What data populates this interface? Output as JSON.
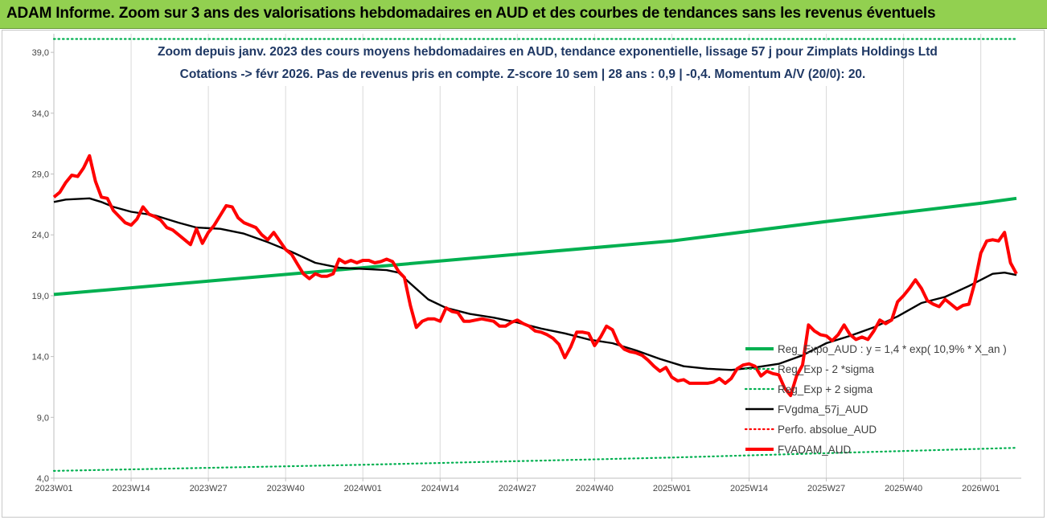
{
  "banner": {
    "title": "ADAM Informe. Zoom sur 3 ans des valorisations hebdomadaires en AUD et des courbes de tendances sans les revenus éventuels"
  },
  "colors": {
    "banner_bg": "#92d050",
    "title_text": "#1f3864",
    "regression": "#00b050",
    "sigma": "#00b050",
    "fvgdma": "#000000",
    "perfo": "#ff0000",
    "fvadam": "#ff0000",
    "grid": "#d9d9d9"
  },
  "chart_data": {
    "type": "line",
    "title": "Zoom depuis janv. 2023 des cours moyens hebdomadaires en AUD, tendance exponentielle, lissage 57 j pour Zimplats Holdings Ltd",
    "subtitle": "Cotations -> févr 2026. Pas de revenus pris en compte. Z-score 10 sem | 28 ans : 0,9 | -0,4. Momentum A/V (20/0): 20.",
    "xlabel": "",
    "ylabel": "",
    "ylim": [
      4.0,
      40.0
    ],
    "yticks": [
      "4,0",
      "9,0",
      "14,0",
      "19,0",
      "24,0",
      "29,0",
      "34,0",
      "39,0"
    ],
    "ytick_values": [
      4,
      9,
      14,
      19,
      24,
      29,
      34,
      39
    ],
    "xticks": [
      "2023W01",
      "2023W14",
      "2023W27",
      "2023W40",
      "2024W01",
      "2024W14",
      "2024W27",
      "2024W40",
      "2025W01",
      "2025W14",
      "2025W27",
      "2025W40",
      "2026W01"
    ],
    "xtick_weeks": [
      0,
      13,
      26,
      39,
      52,
      65,
      78,
      91,
      104,
      117,
      130,
      143,
      156
    ],
    "x_weeks_total": 162,
    "grid": "vertical",
    "legend_position": "right",
    "series": [
      {
        "name": "Reg_Expo_AUD : y = 1,4 * exp( 10,9% *  X_an )",
        "style": "solid-thick",
        "color": "#00b050",
        "points": [
          [
            0,
            19.1
          ],
          [
            26,
            20.2
          ],
          [
            52,
            21.3
          ],
          [
            78,
            22.4
          ],
          [
            104,
            23.5
          ],
          [
            130,
            25.1
          ],
          [
            156,
            26.6
          ],
          [
            162,
            27.0
          ]
        ]
      },
      {
        "name": "Reg_Exp - 2 *sigma",
        "style": "dotted",
        "color": "#00b050",
        "points": [
          [
            0,
            4.6
          ],
          [
            52,
            5.1
          ],
          [
            104,
            5.7
          ],
          [
            162,
            6.5
          ]
        ]
      },
      {
        "name": "Reg_Exp + 2 sigma",
        "style": "dotted",
        "color": "#00b050",
        "points": [
          [
            0,
            40.1
          ],
          [
            162,
            40.1
          ]
        ]
      },
      {
        "name": "FVgdma_57j_AUD",
        "style": "solid",
        "color": "#000000",
        "points": [
          [
            0,
            26.7
          ],
          [
            2,
            26.9
          ],
          [
            6,
            27.0
          ],
          [
            8,
            26.7
          ],
          [
            10,
            26.3
          ],
          [
            13,
            25.9
          ],
          [
            17,
            25.6
          ],
          [
            21,
            25.0
          ],
          [
            24,
            24.6
          ],
          [
            28,
            24.5
          ],
          [
            32,
            24.1
          ],
          [
            36,
            23.4
          ],
          [
            40,
            22.6
          ],
          [
            44,
            21.7
          ],
          [
            48,
            21.3
          ],
          [
            52,
            21.2
          ],
          [
            56,
            21.1
          ],
          [
            58,
            20.9
          ],
          [
            60,
            20.0
          ],
          [
            63,
            18.7
          ],
          [
            66,
            18.0
          ],
          [
            70,
            17.5
          ],
          [
            74,
            17.2
          ],
          [
            78,
            16.8
          ],
          [
            82,
            16.3
          ],
          [
            86,
            15.9
          ],
          [
            90,
            15.4
          ],
          [
            94,
            15.1
          ],
          [
            98,
            14.5
          ],
          [
            102,
            13.8
          ],
          [
            106,
            13.2
          ],
          [
            110,
            13.0
          ],
          [
            114,
            12.9
          ],
          [
            118,
            13.1
          ],
          [
            122,
            13.4
          ],
          [
            126,
            14.1
          ],
          [
            130,
            15.1
          ],
          [
            134,
            15.7
          ],
          [
            138,
            16.4
          ],
          [
            142,
            17.3
          ],
          [
            146,
            18.4
          ],
          [
            150,
            18.9
          ],
          [
            154,
            19.8
          ],
          [
            158,
            20.8
          ],
          [
            160,
            20.9
          ],
          [
            162,
            20.7
          ]
        ]
      },
      {
        "name": "Perfo. absolue_AUD",
        "style": "dotted",
        "color": "#ff0000",
        "points": []
      },
      {
        "name": "FVADAM_AUD",
        "style": "solid-thick",
        "color": "#ff0000",
        "points": [
          [
            0,
            27.1
          ],
          [
            1,
            27.5
          ],
          [
            2,
            28.3
          ],
          [
            3,
            28.9
          ],
          [
            4,
            28.8
          ],
          [
            5,
            29.5
          ],
          [
            6,
            30.5
          ],
          [
            7,
            28.4
          ],
          [
            8,
            27.1
          ],
          [
            9,
            27.0
          ],
          [
            10,
            26.0
          ],
          [
            11,
            25.5
          ],
          [
            12,
            25.0
          ],
          [
            13,
            24.8
          ],
          [
            14,
            25.3
          ],
          [
            15,
            26.3
          ],
          [
            16,
            25.7
          ],
          [
            17,
            25.5
          ],
          [
            18,
            25.2
          ],
          [
            19,
            24.6
          ],
          [
            20,
            24.4
          ],
          [
            21,
            24.0
          ],
          [
            22,
            23.6
          ],
          [
            23,
            23.2
          ],
          [
            24,
            24.5
          ],
          [
            25,
            23.3
          ],
          [
            26,
            24.2
          ],
          [
            27,
            24.8
          ],
          [
            28,
            25.6
          ],
          [
            29,
            26.4
          ],
          [
            30,
            26.3
          ],
          [
            31,
            25.4
          ],
          [
            32,
            25.0
          ],
          [
            33,
            24.8
          ],
          [
            34,
            24.6
          ],
          [
            35,
            24.0
          ],
          [
            36,
            23.6
          ],
          [
            37,
            24.2
          ],
          [
            38,
            23.5
          ],
          [
            39,
            22.8
          ],
          [
            40,
            22.4
          ],
          [
            41,
            21.6
          ],
          [
            42,
            20.8
          ],
          [
            43,
            20.4
          ],
          [
            44,
            20.8
          ],
          [
            45,
            20.6
          ],
          [
            46,
            20.6
          ],
          [
            47,
            20.8
          ],
          [
            48,
            22.0
          ],
          [
            49,
            21.7
          ],
          [
            50,
            21.9
          ],
          [
            51,
            21.7
          ],
          [
            52,
            21.9
          ],
          [
            53,
            21.9
          ],
          [
            54,
            21.7
          ],
          [
            55,
            21.8
          ],
          [
            56,
            22.0
          ],
          [
            57,
            21.8
          ],
          [
            58,
            21.0
          ],
          [
            59,
            20.5
          ],
          [
            60,
            18.2
          ],
          [
            61,
            16.4
          ],
          [
            62,
            16.9
          ],
          [
            63,
            17.1
          ],
          [
            64,
            17.1
          ],
          [
            65,
            16.9
          ],
          [
            66,
            18.0
          ],
          [
            67,
            17.7
          ],
          [
            68,
            17.6
          ],
          [
            69,
            16.9
          ],
          [
            70,
            16.9
          ],
          [
            71,
            17.0
          ],
          [
            72,
            17.1
          ],
          [
            73,
            17.0
          ],
          [
            74,
            16.9
          ],
          [
            75,
            16.5
          ],
          [
            76,
            16.5
          ],
          [
            77,
            16.8
          ],
          [
            78,
            17.0
          ],
          [
            79,
            16.7
          ],
          [
            80,
            16.5
          ],
          [
            81,
            16.1
          ],
          [
            82,
            16.0
          ],
          [
            83,
            15.8
          ],
          [
            84,
            15.5
          ],
          [
            85,
            15.0
          ],
          [
            86,
            13.9
          ],
          [
            87,
            14.8
          ],
          [
            88,
            16.0
          ],
          [
            89,
            16.0
          ],
          [
            90,
            15.9
          ],
          [
            91,
            14.9
          ],
          [
            92,
            15.6
          ],
          [
            93,
            16.5
          ],
          [
            94,
            16.2
          ],
          [
            95,
            15.1
          ],
          [
            96,
            14.6
          ],
          [
            97,
            14.4
          ],
          [
            98,
            14.3
          ],
          [
            99,
            14.1
          ],
          [
            100,
            13.7
          ],
          [
            101,
            13.2
          ],
          [
            102,
            12.8
          ],
          [
            103,
            13.1
          ],
          [
            104,
            12.3
          ],
          [
            105,
            12.0
          ],
          [
            106,
            12.1
          ],
          [
            107,
            11.8
          ],
          [
            108,
            11.8
          ],
          [
            109,
            11.8
          ],
          [
            110,
            11.8
          ],
          [
            111,
            11.9
          ],
          [
            112,
            12.2
          ],
          [
            113,
            11.8
          ],
          [
            114,
            12.2
          ],
          [
            115,
            13.0
          ],
          [
            116,
            13.3
          ],
          [
            117,
            13.4
          ],
          [
            118,
            13.2
          ],
          [
            119,
            12.4
          ],
          [
            120,
            12.8
          ],
          [
            121,
            12.6
          ],
          [
            122,
            12.5
          ],
          [
            123,
            11.4
          ],
          [
            124,
            10.8
          ],
          [
            125,
            12.4
          ],
          [
            126,
            13.3
          ],
          [
            127,
            16.6
          ],
          [
            128,
            16.1
          ],
          [
            129,
            15.8
          ],
          [
            130,
            15.7
          ],
          [
            131,
            15.3
          ],
          [
            132,
            15.8
          ],
          [
            133,
            16.6
          ],
          [
            134,
            15.8
          ],
          [
            135,
            15.4
          ],
          [
            136,
            15.6
          ],
          [
            137,
            15.4
          ],
          [
            138,
            16.1
          ],
          [
            139,
            17.0
          ],
          [
            140,
            16.7
          ],
          [
            141,
            17.0
          ],
          [
            142,
            18.5
          ],
          [
            143,
            19.0
          ],
          [
            144,
            19.6
          ],
          [
            145,
            20.3
          ],
          [
            146,
            19.6
          ],
          [
            147,
            18.6
          ],
          [
            148,
            18.3
          ],
          [
            149,
            18.1
          ],
          [
            150,
            18.7
          ],
          [
            151,
            18.3
          ],
          [
            152,
            17.9
          ],
          [
            153,
            18.2
          ],
          [
            154,
            18.3
          ],
          [
            155,
            20.1
          ],
          [
            156,
            22.5
          ],
          [
            157,
            23.5
          ],
          [
            158,
            23.6
          ],
          [
            159,
            23.5
          ],
          [
            160,
            24.2
          ],
          [
            161,
            21.7
          ],
          [
            162,
            20.8
          ]
        ]
      }
    ]
  }
}
